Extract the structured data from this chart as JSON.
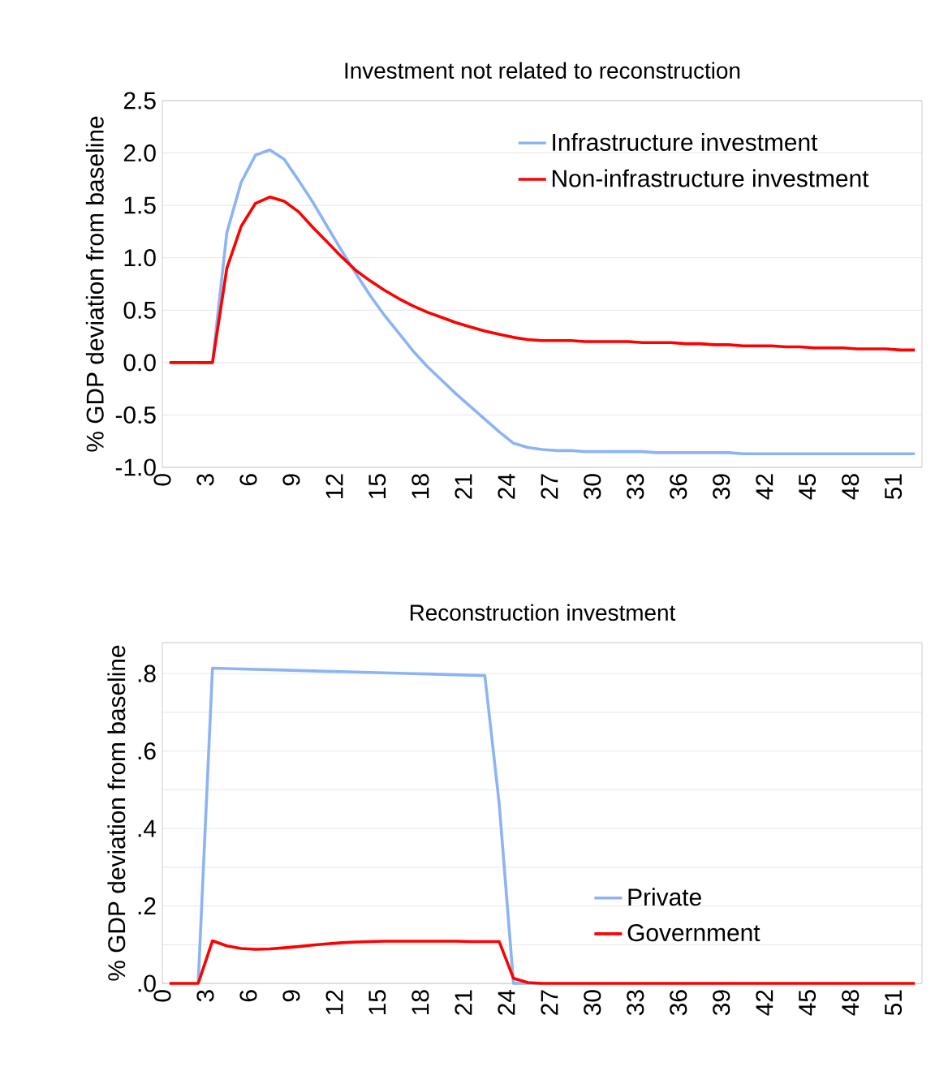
{
  "chart_data": [
    {
      "type": "line",
      "title": "Investment not related to reconstruction",
      "ylabel": "% GDP deviation from baseline",
      "x": [
        0.5,
        1.5,
        2.5,
        3.5,
        4.5,
        5.5,
        6.5,
        7.5,
        8.5,
        9.5,
        10.5,
        11.5,
        12.5,
        13.5,
        14.5,
        15.5,
        16.5,
        17.5,
        18.5,
        19.5,
        20.5,
        21.5,
        22.5,
        23.5,
        24.5,
        25.5,
        26.5,
        27.5,
        28.5,
        29.5,
        30.5,
        31.5,
        32.5,
        33.5,
        34.5,
        35.5,
        36.5,
        37.5,
        38.5,
        39.5,
        40.5,
        41.5,
        42.5,
        43.5,
        44.5,
        45.5,
        46.5,
        47.5,
        48.5,
        49.5,
        50.5,
        51.5,
        52.5
      ],
      "series": [
        {
          "name": "Infrastructure investment",
          "color": "#8db4f2",
          "values": [
            null,
            null,
            0,
            0,
            1.24,
            1.72,
            1.98,
            2.03,
            1.94,
            1.74,
            1.53,
            1.3,
            1.07,
            0.85,
            0.64,
            0.45,
            0.28,
            0.11,
            -0.04,
            -0.17,
            -0.3,
            -0.42,
            -0.54,
            -0.66,
            -0.77,
            -0.81,
            -0.83,
            -0.84,
            -0.84,
            -0.85,
            -0.85,
            -0.85,
            -0.85,
            -0.85,
            -0.86,
            -0.86,
            -0.86,
            -0.86,
            -0.86,
            -0.86,
            -0.87,
            -0.87,
            -0.87,
            -0.87,
            -0.87,
            -0.87,
            -0.87,
            -0.87,
            -0.87,
            -0.87,
            -0.87,
            -0.87,
            -0.87
          ]
        },
        {
          "name": "Non-infrastructure investment",
          "color": "#ff0000",
          "values": [
            0,
            0,
            0,
            0,
            0.9,
            1.3,
            1.52,
            1.58,
            1.54,
            1.44,
            1.29,
            1.15,
            1.01,
            0.88,
            0.78,
            0.69,
            0.61,
            0.54,
            0.48,
            0.43,
            0.38,
            0.34,
            0.3,
            0.27,
            0.24,
            0.22,
            0.21,
            0.21,
            0.21,
            0.2,
            0.2,
            0.2,
            0.2,
            0.19,
            0.19,
            0.19,
            0.18,
            0.18,
            0.17,
            0.17,
            0.16,
            0.16,
            0.16,
            0.15,
            0.15,
            0.14,
            0.14,
            0.14,
            0.13,
            0.13,
            0.13,
            0.12,
            0.12
          ]
        }
      ],
      "xlim": [
        0,
        53
      ],
      "xticks": [
        0,
        3,
        6,
        9,
        12,
        15,
        18,
        21,
        24,
        27,
        30,
        33,
        36,
        39,
        42,
        45,
        48,
        51
      ],
      "ylim": [
        -1.0,
        2.5
      ],
      "yticks": [
        {
          "value": -1.0,
          "label": "-1.0"
        },
        {
          "value": -0.5,
          "label": "-0.5"
        },
        {
          "value": 0,
          "label": "0.0"
        },
        {
          "value": 0.5,
          "label": "0.5"
        },
        {
          "value": 1.0,
          "label": "1.0"
        },
        {
          "value": 1.5,
          "label": "1.5"
        },
        {
          "value": 2.0,
          "label": "2.0"
        },
        {
          "value": 2.5,
          "label": "2.5"
        }
      ],
      "grid": "y",
      "legend": "top right"
    },
    {
      "type": "line",
      "title": "Reconstruction investment",
      "ylabel": "% GDP deviation from baseline",
      "x": [
        0.5,
        1.5,
        2.5,
        3.5,
        4.5,
        5.5,
        6.5,
        7.5,
        8.5,
        9.5,
        10.5,
        11.5,
        12.5,
        13.5,
        14.5,
        15.5,
        16.5,
        17.5,
        18.5,
        19.5,
        20.5,
        21.5,
        22.5,
        23.5,
        24.5,
        25.5,
        26.5,
        27.5,
        28.5,
        29.5,
        30.5,
        31.5,
        32.5,
        33.5,
        34.5,
        35.5,
        36.5,
        37.5,
        38.5,
        39.5,
        40.5,
        41.5,
        42.5,
        43.5,
        44.5,
        45.5,
        46.5,
        47.5,
        48.5,
        49.5,
        50.5,
        51.5,
        52.5
      ],
      "series": [
        {
          "name": "Private",
          "color": "#8db4f2",
          "values": [
            null,
            null,
            0,
            0.814,
            0.813,
            0.812,
            0.811,
            0.81,
            0.809,
            0.808,
            0.807,
            0.806,
            0.805,
            0.804,
            0.803,
            0.802,
            0.801,
            0.8,
            0.799,
            0.798,
            0.797,
            0.796,
            0.795,
            0.465,
            0,
            0,
            0,
            null,
            null,
            null,
            null,
            null,
            null,
            null,
            null,
            null,
            null,
            null,
            null,
            null,
            null,
            null,
            null,
            null,
            null,
            null,
            null,
            null,
            null,
            null,
            null,
            null,
            null
          ]
        },
        {
          "name": "Government",
          "color": "#ff0000",
          "values": [
            0,
            0,
            0,
            0.11,
            0.097,
            0.09,
            0.088,
            0.089,
            0.092,
            0.095,
            0.099,
            0.102,
            0.105,
            0.107,
            0.108,
            0.109,
            0.109,
            0.109,
            0.109,
            0.109,
            0.109,
            0.108,
            0.108,
            0.108,
            0.013,
            0.002,
            0,
            0,
            0,
            0,
            0,
            0,
            0,
            0,
            0,
            0,
            0,
            0,
            0,
            0,
            0,
            0,
            0,
            0,
            0,
            0,
            0,
            0,
            0,
            0,
            0,
            0,
            0
          ]
        }
      ],
      "xlim": [
        0,
        53
      ],
      "xticks": [
        0,
        3,
        6,
        9,
        12,
        15,
        18,
        21,
        24,
        27,
        30,
        33,
        36,
        39,
        42,
        45,
        48,
        51
      ],
      "ylim": [
        0,
        0.88
      ],
      "yticks": [
        {
          "value": 0,
          "label": ".0"
        },
        {
          "value": 0.1,
          "label": null
        },
        {
          "value": 0.2,
          "label": ".2"
        },
        {
          "value": 0.3,
          "label": null
        },
        {
          "value": 0.4,
          "label": ".4"
        },
        {
          "value": 0.5,
          "label": null
        },
        {
          "value": 0.6,
          "label": ".6"
        },
        {
          "value": 0.7,
          "label": null
        },
        {
          "value": 0.8,
          "label": ".8"
        }
      ],
      "grid": "y",
      "legend": "bottom right"
    }
  ]
}
